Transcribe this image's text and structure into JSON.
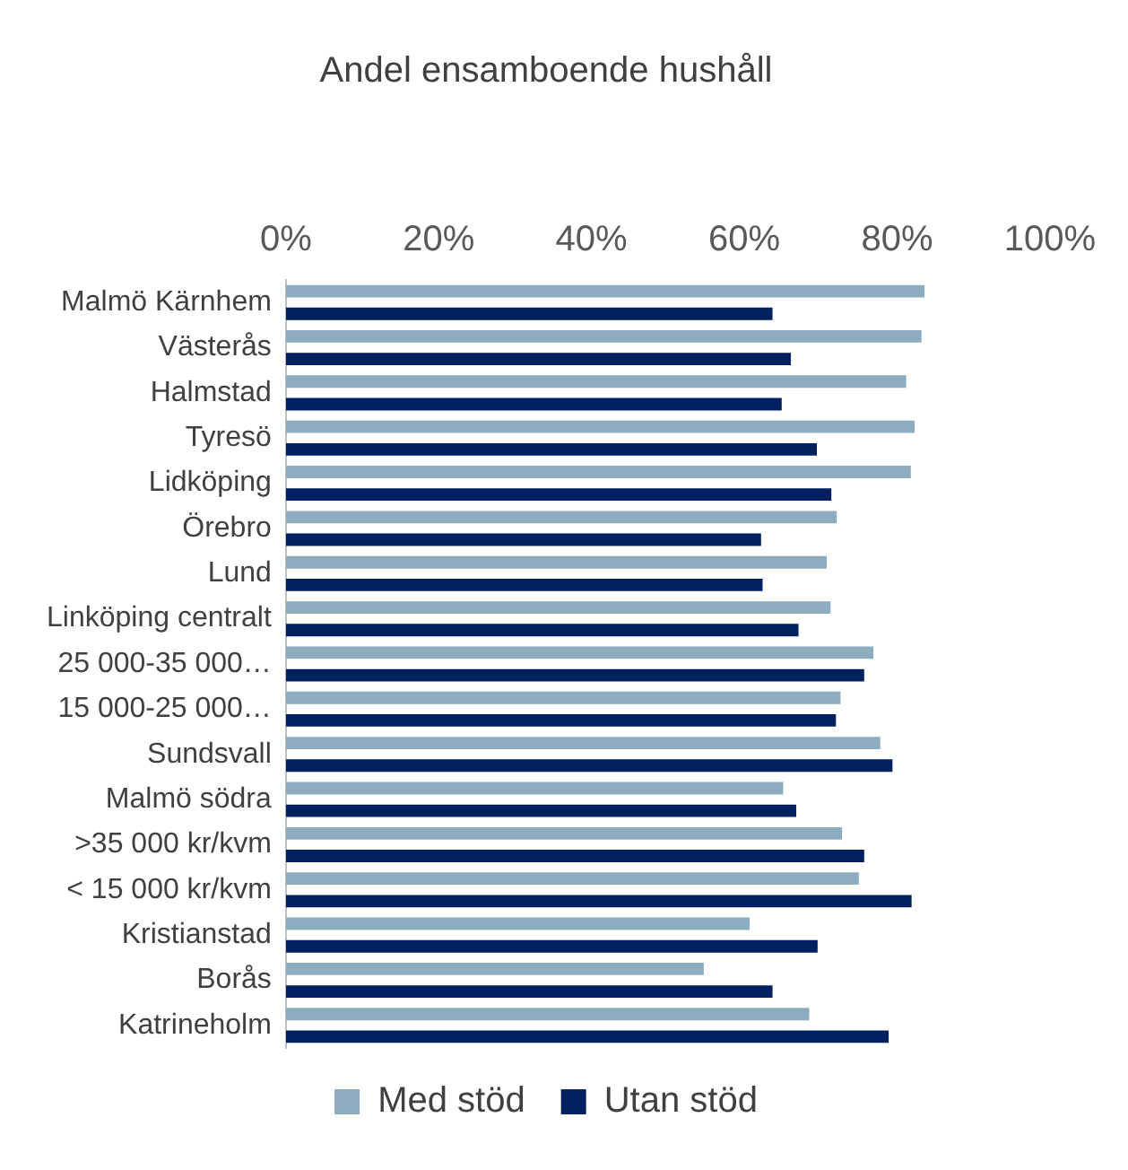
{
  "chart_data": {
    "type": "bar",
    "orientation": "horizontal",
    "title": "Andel ensamboende hushåll",
    "categories": [
      "Malmö Kärnhem",
      "Västerås",
      "Halmstad",
      "Tyresö",
      "Lidköping",
      "Örebro",
      "Lund",
      "Linköping centralt",
      "25 000-35 000…",
      "15 000-25 000…",
      "Sundsvall",
      "Malmö södra",
      ">35 000 kr/kvm",
      "< 15 000 kr/kvm",
      "Kristianstad",
      "Borås",
      "Katrineholm"
    ],
    "series": [
      {
        "name": "Med stöd",
        "color": "#8eacbf",
        "values": [
          83.6,
          83.2,
          81.2,
          82.3,
          81.8,
          72.1,
          70.8,
          71.3,
          76.9,
          72.6,
          77.8,
          65.1,
          72.8,
          75.0,
          60.7,
          54.7,
          68.5
        ]
      },
      {
        "name": "Utan stöd",
        "color": "#002060",
        "values": [
          63.7,
          66.1,
          64.9,
          69.5,
          71.4,
          62.2,
          62.4,
          67.1,
          75.7,
          72.0,
          79.4,
          66.8,
          75.7,
          81.9,
          69.6,
          63.7,
          78.9
        ]
      }
    ],
    "xlim": [
      0,
      100
    ],
    "xticks": [
      {
        "value": 0,
        "label": "0%"
      },
      {
        "value": 20,
        "label": "20%"
      },
      {
        "value": 40,
        "label": "40%"
      },
      {
        "value": 60,
        "label": "60%"
      },
      {
        "value": 80,
        "label": "80%"
      },
      {
        "value": 100,
        "label": "100%"
      }
    ],
    "grid": false,
    "legend": "bottom"
  }
}
